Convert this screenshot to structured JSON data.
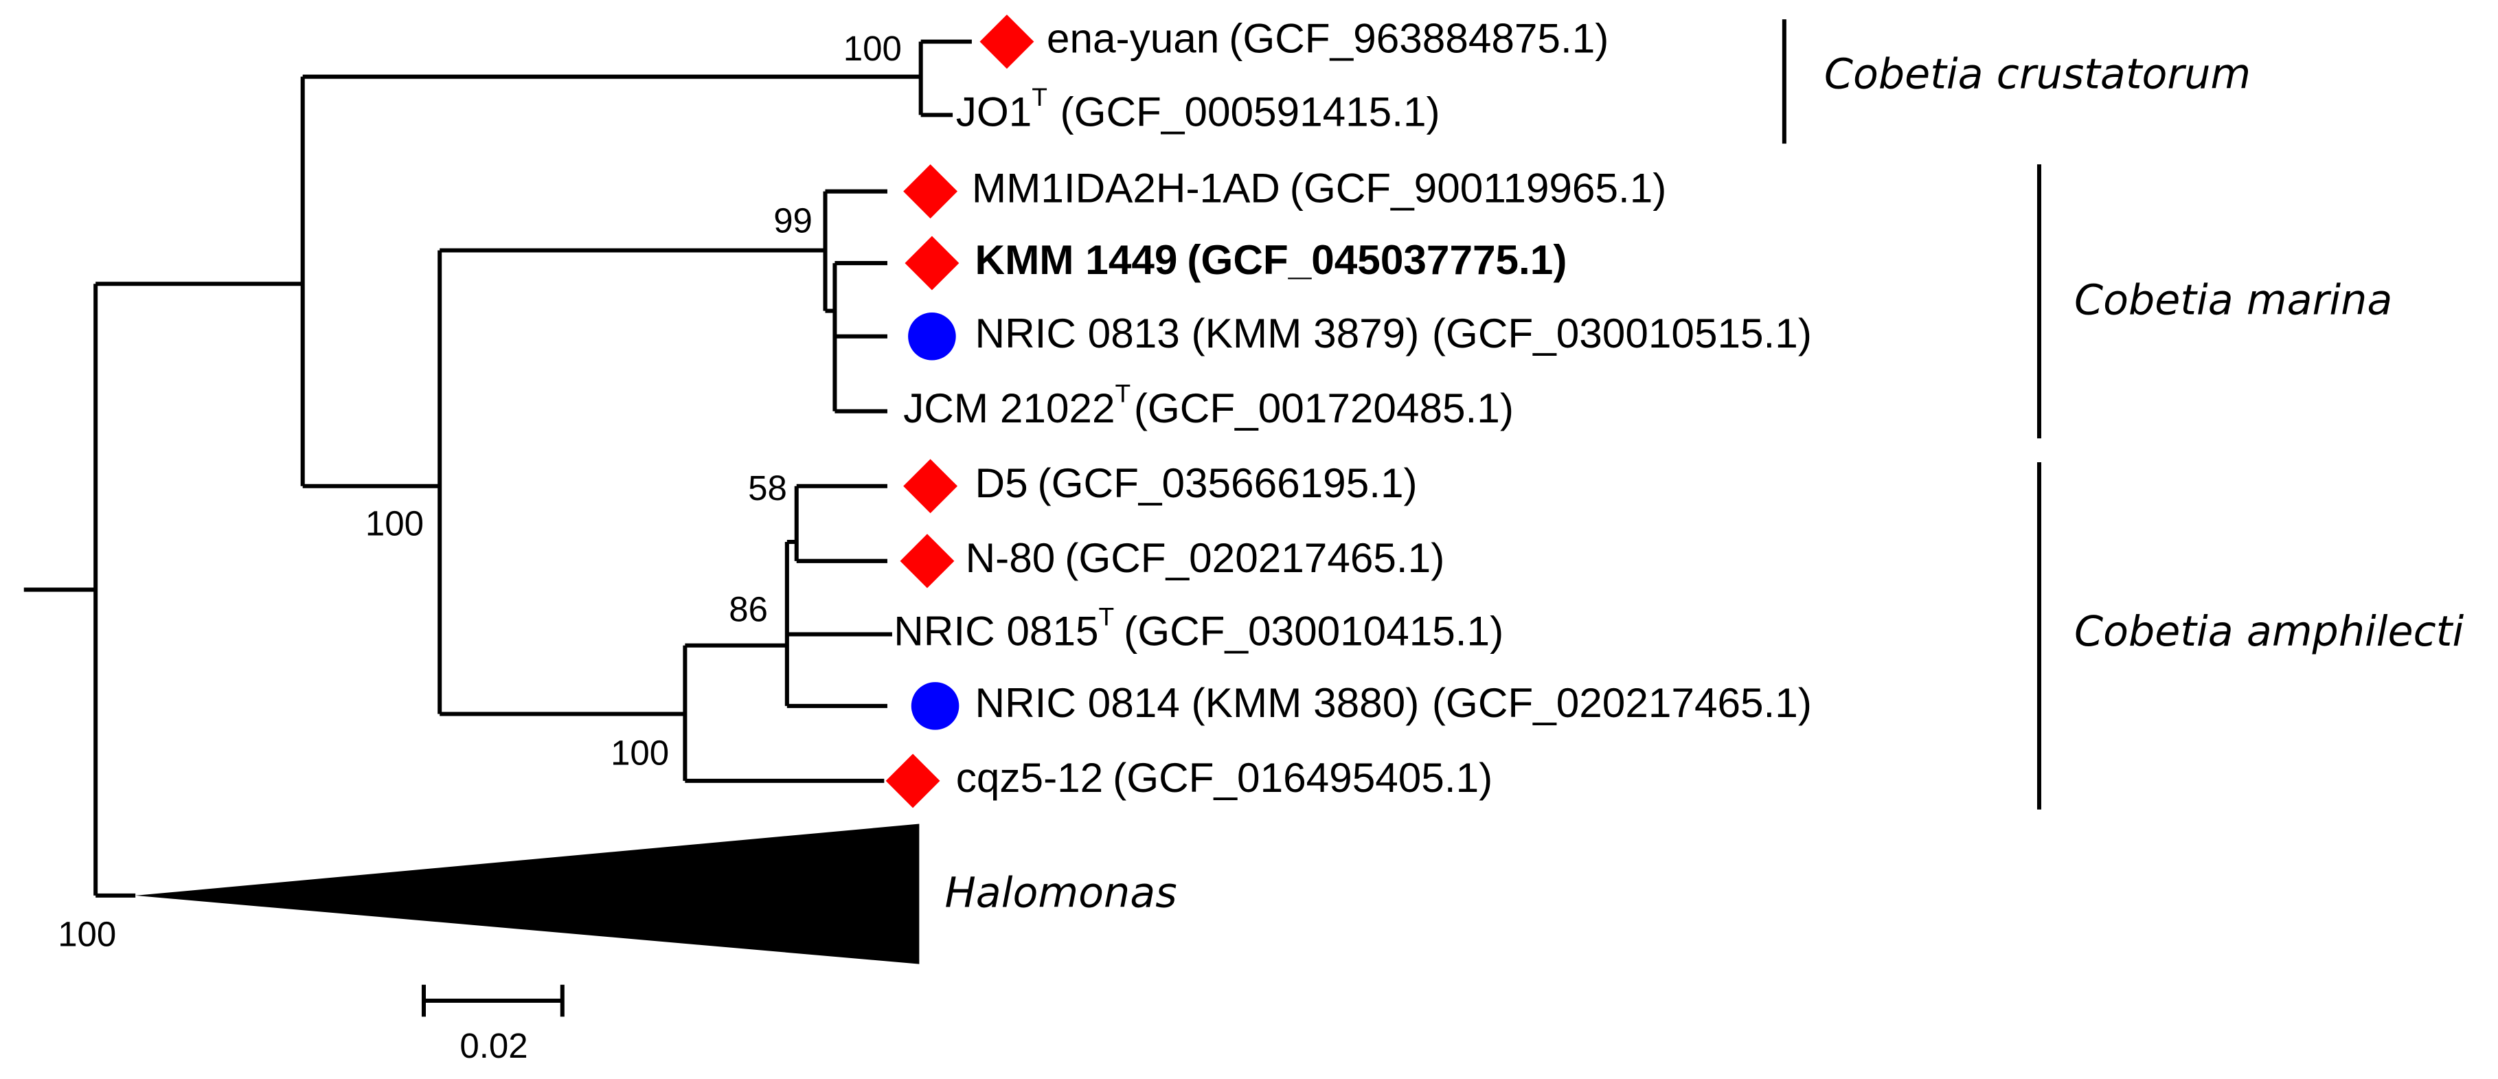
{
  "leaves": [
    {
      "name": "ena-yuan",
      "accession": "(GCF_963884875.1)"
    },
    {
      "name": "JO1",
      "superscript": "T",
      "accession": "(GCF_000591415.1)"
    },
    {
      "name": "MM1IDA2H-1AD",
      "accession": "(GCF_900119965.1)"
    },
    {
      "name": "KMM 1449",
      "accession": "(GCF_045037775.1)"
    },
    {
      "name": "NRIC 0813 (KMM 3879)",
      "accession": "(GCF_030010515.1)"
    },
    {
      "name": "JCM 21022",
      "superscript": "T",
      "accession": "(GCF_001720485.1)"
    },
    {
      "name": "D5",
      "accession": "(GCF_035666195.1)"
    },
    {
      "name": "N-80",
      "accession": "(GCF_020217465.1)"
    },
    {
      "name": "NRIC 0815",
      "superscript": "T",
      "accession": "(GCF_030010415.1)"
    },
    {
      "name": "NRIC 0814 (KMM 3880)",
      "accession": "(GCF_020217465.1)"
    },
    {
      "name": "cqz5-12",
      "accession": "(GCF_016495405.1)"
    }
  ],
  "bootstrap": [
    100,
    99,
    100,
    58,
    86,
    100,
    100
  ],
  "clades": [
    "Cobetia crustatorum",
    "Cobetia marina",
    "Cobetia amphilecti"
  ],
  "outgroup": "Halomonas",
  "scale_bar": 0.02
}
